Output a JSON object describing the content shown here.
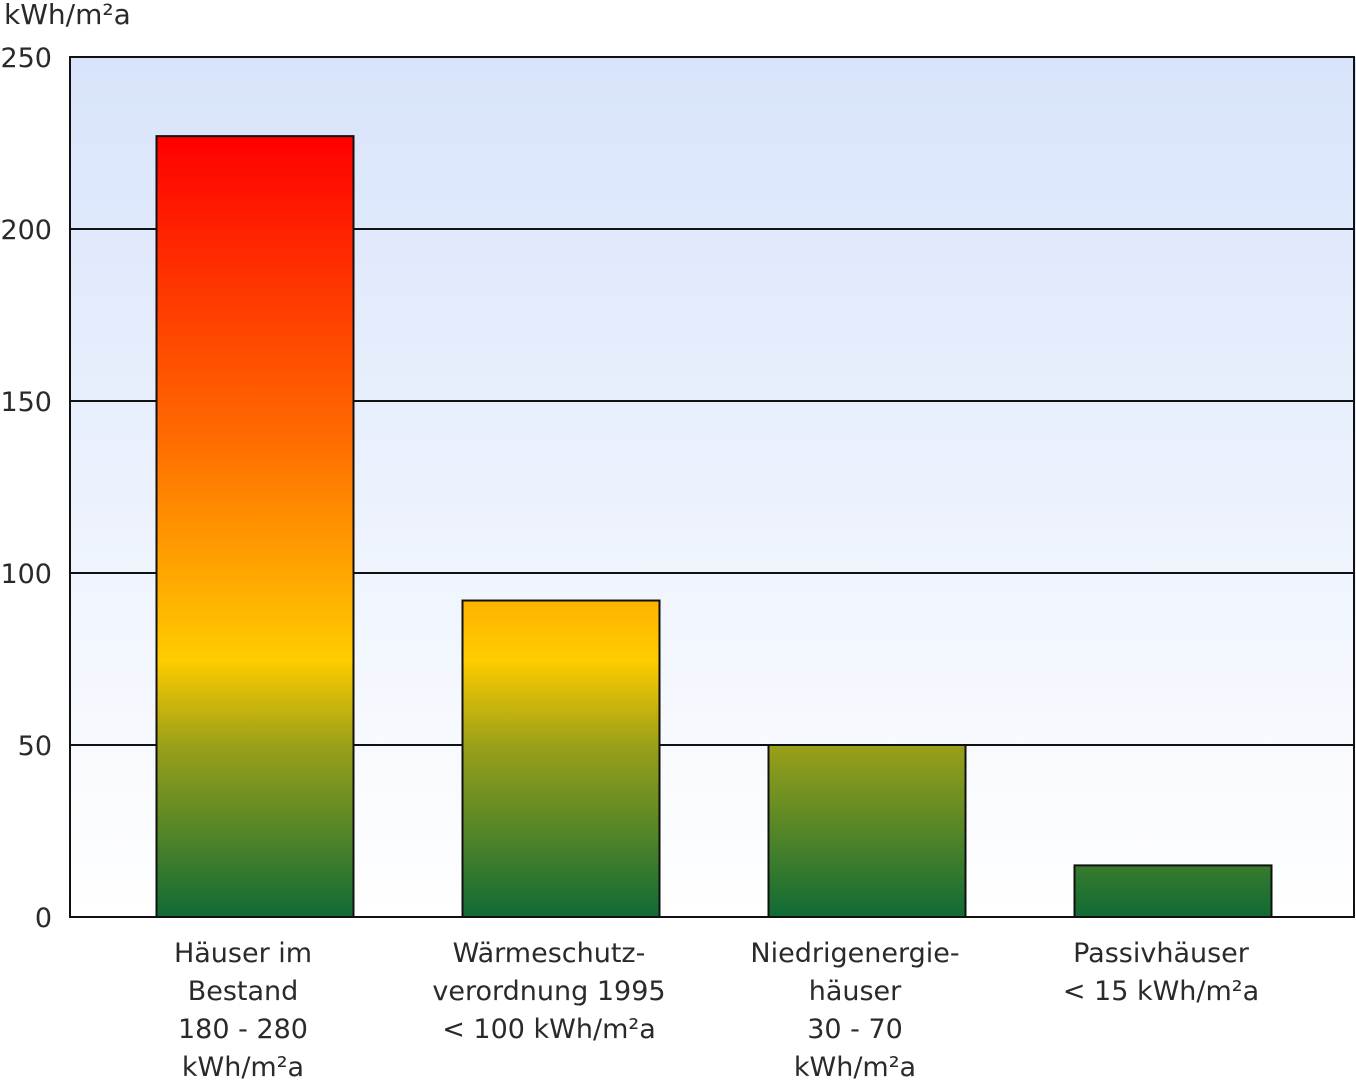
{
  "chart_data": {
    "type": "bar",
    "ylabel": "kWh/m²a",
    "ylim": [
      0,
      250
    ],
    "yticks": [
      0,
      50,
      100,
      150,
      200,
      250
    ],
    "grid": true,
    "categories": [
      [
        "Häuser im",
        "Bestand",
        "180 - 280",
        "kWh/m²a"
      ],
      [
        "Wärmeschutz-",
        "verordnung 1995",
        "< 100 kWh/m²a"
      ],
      [
        "Niedrigenergie-",
        "häuser",
        "30 - 70",
        "kWh/m²a"
      ],
      [
        "Passivhäuser",
        "< 15 kWh/m²a"
      ]
    ],
    "values": [
      227,
      92,
      50,
      15
    ],
    "colors": {
      "plot_bg_top": "#d8e4fb",
      "plot_bg_bottom": "#ffffff",
      "bar_top": "#ff0000",
      "bar_orange": "#ff6a00",
      "bar_yellow": "#ffcc00",
      "bar_olive": "#9aa019",
      "bar_green": "#0f6b35"
    }
  }
}
